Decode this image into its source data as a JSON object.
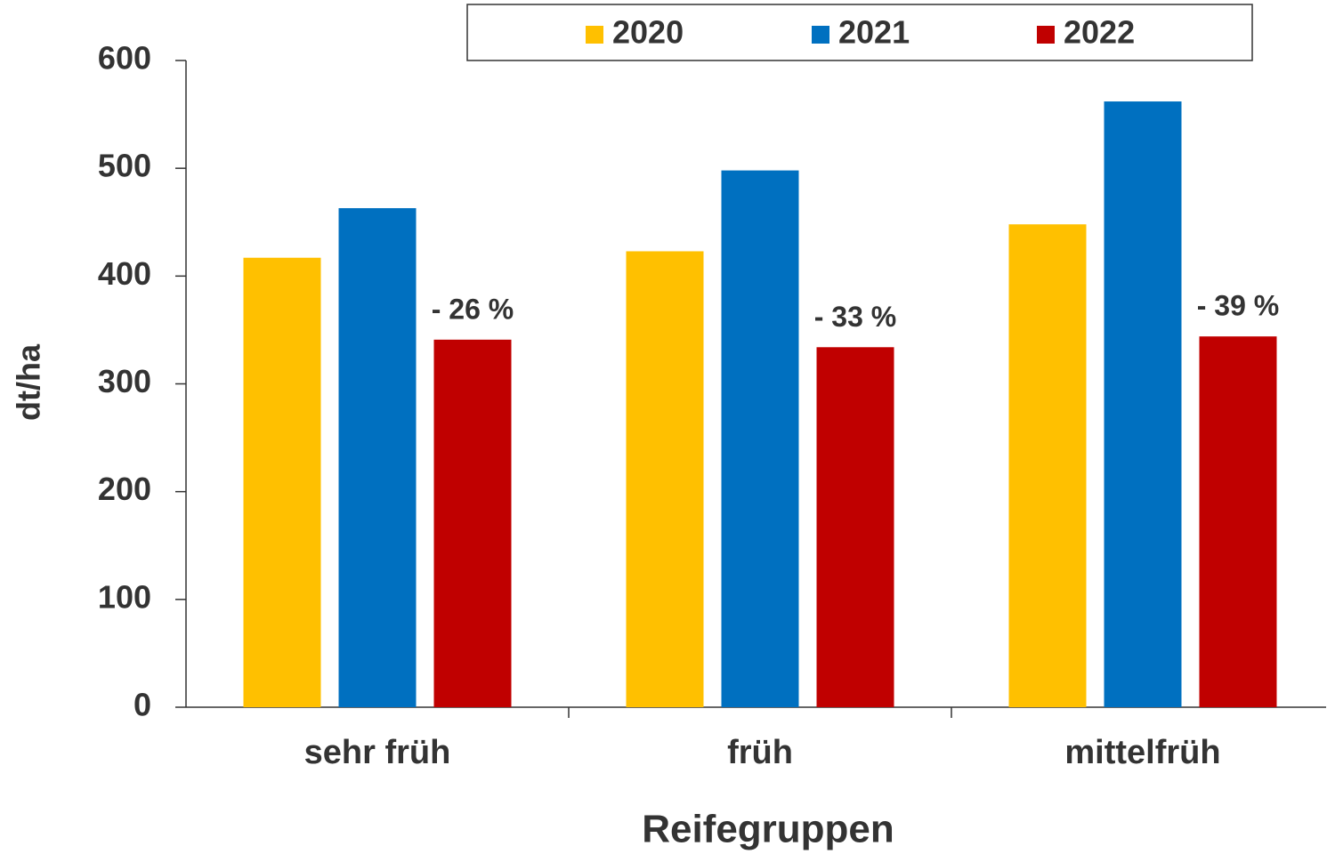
{
  "chart_data": {
    "type": "bar",
    "x_label": "Reifegruppen",
    "y_label": "dt/ha",
    "categories": [
      "sehr früh",
      "früh",
      "mittelfrüh"
    ],
    "series": [
      {
        "name": "2020",
        "color": "#FFC000",
        "values": [
          417,
          423,
          448
        ]
      },
      {
        "name": "2021",
        "color": "#0070C0",
        "values": [
          463,
          498,
          562
        ]
      },
      {
        "name": "2022",
        "color": "#C00000",
        "values": [
          341,
          334,
          344
        ]
      }
    ],
    "annotations": [
      "- 26 %",
      "- 33 %",
      "- 39 %"
    ],
    "ylim": [
      0,
      600
    ],
    "yticks": [
      0,
      100,
      200,
      300,
      400,
      500,
      600
    ],
    "legend": "top"
  }
}
